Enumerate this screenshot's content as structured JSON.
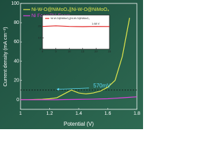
{
  "chart_data": [
    {
      "type": "line",
      "x_label": "Potential (V)",
      "y_label": "Current density (mA cm⁻²)",
      "x": [
        1.0,
        1.05,
        1.1,
        1.15,
        1.2,
        1.25,
        1.3,
        1.35,
        1.4,
        1.45,
        1.5,
        1.55,
        1.6,
        1.65,
        1.7,
        1.75,
        1.8
      ],
      "series": [
        {
          "name": "Ni-W-O@NiMoO₄||Ni-W-O@NiMoO₄",
          "color": "#e6ea4c",
          "values": [
            0,
            0,
            0.3,
            0.5,
            1,
            2,
            6,
            10,
            7,
            6,
            7,
            9,
            13,
            20,
            45,
            85,
            null
          ]
        },
        {
          "name": "Ni Foam||Ni Foam",
          "color": "#e040e0",
          "values": [
            0,
            0,
            0,
            0,
            0,
            0,
            0.2,
            0.3,
            0.4,
            0.5,
            0.6,
            0.8,
            1,
            1.5,
            2,
            2.5,
            3
          ]
        }
      ],
      "xlim": [
        1.0,
        1.8
      ],
      "xticks": [
        1.0,
        1.2,
        1.4,
        1.6,
        1.8
      ],
      "ylim": [
        -10,
        100
      ],
      "yticks": [
        0,
        20,
        40,
        60,
        80,
        100
      ],
      "reference_line": 10,
      "annotation": "570mV",
      "legend": "top-left"
    },
    {
      "type": "line",
      "annotation": "1.68 V",
      "x": [
        0,
        5,
        10,
        15,
        20,
        25
      ],
      "series": [
        {
          "name": "Ni-W-O@NiMoO₄||Ni-W-O@NiMoO₄",
          "color": "#e02020",
          "values": [
            20,
            20.5,
            20,
            19.8,
            20,
            19.9
          ]
        }
      ],
      "xlim": [
        0,
        25
      ],
      "xticks": [
        0,
        5,
        10,
        15,
        20,
        25
      ],
      "ylim": [
        0,
        30
      ],
      "yticks": [
        0,
        10,
        20,
        30
      ],
      "legend": "top-left"
    }
  ]
}
